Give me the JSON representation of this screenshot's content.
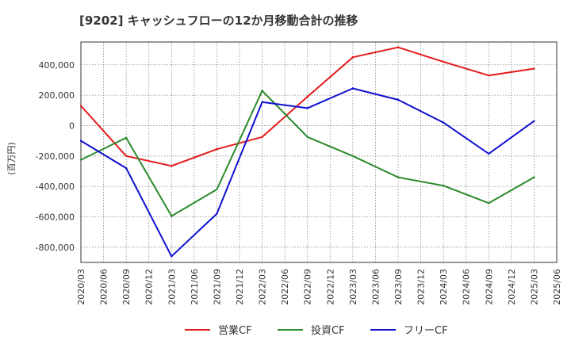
{
  "chart_data": {
    "type": "line",
    "title": "[9202]  キャッシュフローの12か月移動合計の推移",
    "ylabel": "(百万円)",
    "xlabel": "",
    "ylim": [
      -900000,
      550000
    ],
    "yticks": [
      -800000,
      -600000,
      -400000,
      -200000,
      0,
      200000,
      400000
    ],
    "ytick_labels": [
      "-800,000",
      "-600,000",
      "-400,000",
      "-200,000",
      "0",
      "200,000",
      "400,000"
    ],
    "categories": [
      "2020/03",
      "2020/06",
      "2020/09",
      "2020/12",
      "2021/03",
      "2021/06",
      "2021/09",
      "2021/12",
      "2022/03",
      "2022/06",
      "2022/09",
      "2022/12",
      "2023/03",
      "2023/06",
      "2023/09",
      "2023/12",
      "2024/03",
      "2024/06",
      "2024/09",
      "2024/12",
      "2025/03",
      "2025/06"
    ],
    "grid": true,
    "legend_position": "bottom",
    "series": [
      {
        "name": "営業CF",
        "color": "#e41a1c",
        "values": [
          130000,
          null,
          -200000,
          null,
          -265000,
          null,
          -155000,
          null,
          -75000,
          null,
          190000,
          null,
          450000,
          null,
          515000,
          null,
          420000,
          null,
          330000,
          null,
          375000,
          null
        ]
      },
      {
        "name": "投資CF",
        "color": "#2a8a2a",
        "values": [
          -225000,
          null,
          -80000,
          null,
          -595000,
          null,
          -420000,
          null,
          230000,
          null,
          -75000,
          null,
          -200000,
          null,
          -340000,
          null,
          -395000,
          null,
          -510000,
          null,
          -340000,
          null
        ]
      },
      {
        "name": "フリーCF",
        "color": "#1010d0",
        "values": [
          -100000,
          null,
          -280000,
          null,
          -860000,
          null,
          -580000,
          null,
          155000,
          null,
          115000,
          null,
          245000,
          null,
          170000,
          null,
          20000,
          null,
          -185000,
          null,
          30000,
          null
        ]
      }
    ]
  }
}
